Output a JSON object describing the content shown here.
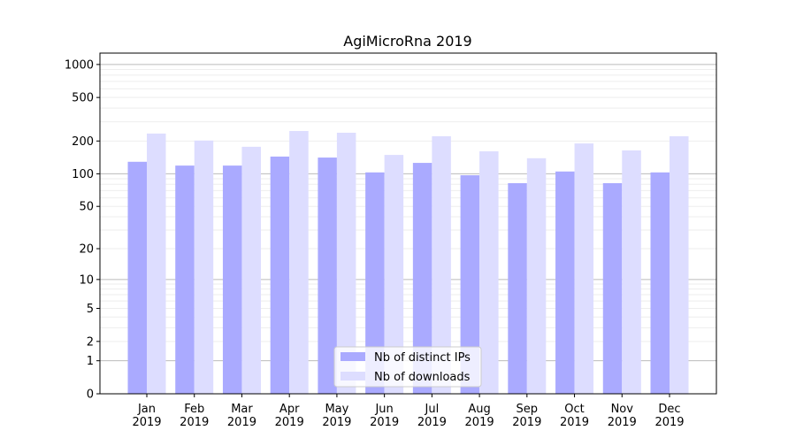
{
  "chart_data": {
    "type": "bar",
    "title": "AgiMicroRna 2019",
    "xlabel": "",
    "ylabel": "",
    "yscale": "log10(1+y)",
    "ylim": [
      0,
      1270
    ],
    "yticks": [
      0,
      1,
      2,
      5,
      10,
      20,
      50,
      100,
      200,
      500,
      1000
    ],
    "grid": true,
    "legend_position": "bottom-center",
    "categories": [
      "Jan\n2019",
      "Feb\n2019",
      "Mar\n2019",
      "Apr\n2019",
      "May\n2019",
      "Jun\n2019",
      "Jul\n2019",
      "Aug\n2019",
      "Sep\n2019",
      "Oct\n2019",
      "Nov\n2019",
      "Dec\n2019"
    ],
    "series": [
      {
        "name": "Nb of distinct IPs",
        "color": "#aaaaff",
        "values": [
          129,
          119,
          119,
          144,
          141,
          103,
          126,
          97,
          82,
          105,
          82,
          103
        ]
      },
      {
        "name": "Nb of downloads",
        "color": "#ddddff",
        "values": [
          234,
          202,
          177,
          247,
          238,
          149,
          221,
          161,
          139,
          190,
          164,
          221
        ]
      }
    ]
  }
}
